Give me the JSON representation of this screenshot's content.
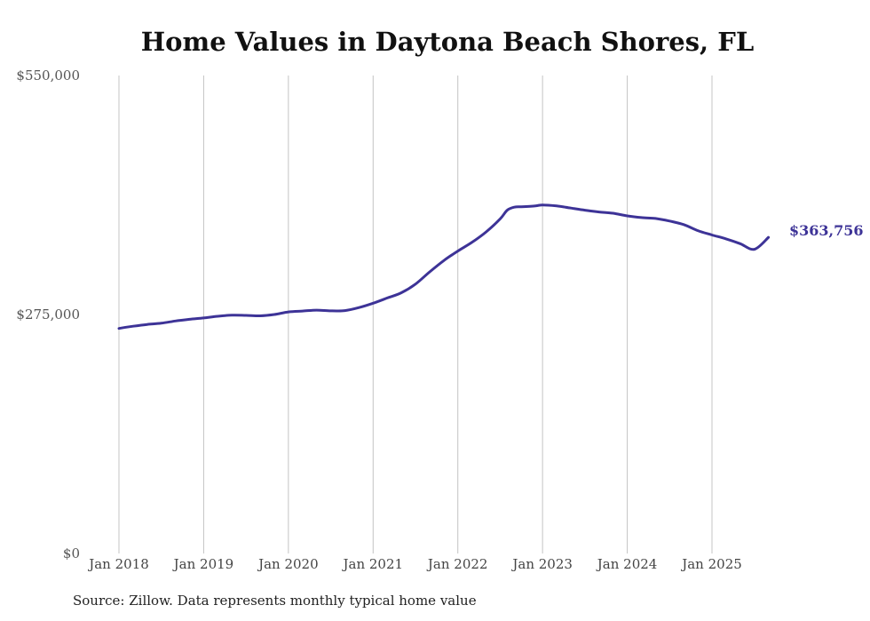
{
  "chart_data": {
    "type": "line",
    "title": "Home Values in Daytona Beach Shores, FL",
    "xlabel": "",
    "ylabel": "",
    "ylim": [
      0,
      550000
    ],
    "yticks": [
      {
        "value": 0,
        "label": "$0"
      },
      {
        "value": 275000,
        "label": "$275,000"
      },
      {
        "value": 550000,
        "label": "$550,000"
      }
    ],
    "xticks": [
      {
        "value": "2018-01",
        "label": "Jan 2018"
      },
      {
        "value": "2019-01",
        "label": "Jan 2019"
      },
      {
        "value": "2020-01",
        "label": "Jan 2020"
      },
      {
        "value": "2021-01",
        "label": "Jan 2021"
      },
      {
        "value": "2022-01",
        "label": "Jan 2022"
      },
      {
        "value": "2023-01",
        "label": "Jan 2023"
      },
      {
        "value": "2024-01",
        "label": "Jan 2024"
      },
      {
        "value": "2025-01",
        "label": "Jan 2025"
      }
    ],
    "x_range": [
      "2018-01",
      "2025-09"
    ],
    "grid": "vertical",
    "legend": "none",
    "line_color": "#3d3397",
    "end_label": "$363,756",
    "series": [
      {
        "points": [
          [
            "2018-01",
            259000
          ],
          [
            "2018-03",
            261500
          ],
          [
            "2018-05",
            263500
          ],
          [
            "2018-07",
            265000
          ],
          [
            "2018-09",
            267500
          ],
          [
            "2018-11",
            269500
          ],
          [
            "2019-01",
            271000
          ],
          [
            "2019-03",
            273000
          ],
          [
            "2019-05",
            274200
          ],
          [
            "2019-07",
            274000
          ],
          [
            "2019-09",
            273500
          ],
          [
            "2019-11",
            275000
          ],
          [
            "2020-01",
            278000
          ],
          [
            "2020-03",
            279000
          ],
          [
            "2020-05",
            280000
          ],
          [
            "2020-07",
            279200
          ],
          [
            "2020-09",
            279500
          ],
          [
            "2020-11",
            283000
          ],
          [
            "2021-01",
            288000
          ],
          [
            "2021-03",
            294000
          ],
          [
            "2021-05",
            300000
          ],
          [
            "2021-07",
            310000
          ],
          [
            "2021-09",
            324000
          ],
          [
            "2021-11",
            337000
          ],
          [
            "2022-01",
            348000
          ],
          [
            "2022-03",
            358000
          ],
          [
            "2022-05",
            370000
          ],
          [
            "2022-07",
            385000
          ],
          [
            "2022-08",
            395000
          ],
          [
            "2022-09",
            398500
          ],
          [
            "2022-10",
            399000
          ],
          [
            "2022-12",
            400000
          ],
          [
            "2023-01",
            401000
          ],
          [
            "2023-03",
            400000
          ],
          [
            "2023-05",
            397500
          ],
          [
            "2023-07",
            395000
          ],
          [
            "2023-09",
            393000
          ],
          [
            "2023-11",
            391500
          ],
          [
            "2024-01",
            388500
          ],
          [
            "2024-03",
            386500
          ],
          [
            "2024-05",
            385500
          ],
          [
            "2024-07",
            382500
          ],
          [
            "2024-09",
            378500
          ],
          [
            "2024-11",
            371500
          ],
          [
            "2025-01",
            366500
          ],
          [
            "2025-03",
            362000
          ],
          [
            "2025-05",
            356500
          ],
          [
            "2025-07",
            350000
          ],
          [
            "2025-09",
            363756
          ]
        ]
      }
    ]
  },
  "source_note": "Source: Zillow. Data represents monthly typical home value"
}
